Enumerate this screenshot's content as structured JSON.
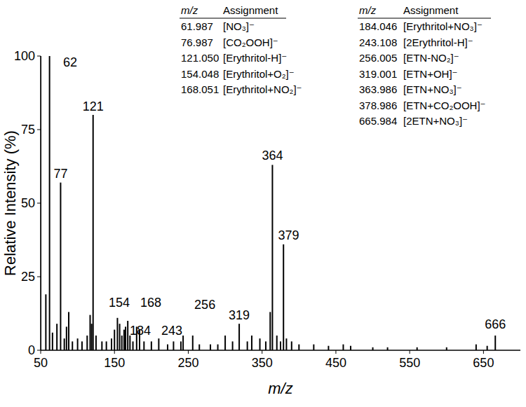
{
  "chart_data": {
    "type": "bar",
    "color": "#000000",
    "x_label": "m/z",
    "y_label": "Relative Intensity (%)",
    "x": [
      50,
      57,
      62,
      66,
      72,
      77,
      82,
      85,
      88,
      93,
      100,
      106,
      113,
      117,
      119,
      121,
      125,
      133,
      139,
      146,
      150,
      154,
      157,
      160,
      163,
      165,
      168,
      171,
      175,
      180,
      184,
      190,
      200,
      210,
      222,
      230,
      240,
      243,
      256,
      265,
      280,
      290,
      300,
      310,
      319,
      330,
      336,
      347,
      355,
      361,
      364,
      370,
      375,
      379,
      383,
      390,
      400,
      420,
      440,
      460,
      470,
      500,
      520,
      560,
      600,
      640,
      655,
      666
    ],
    "values": [
      100,
      19,
      100,
      6,
      9,
      57,
      4,
      8,
      13,
      3,
      4,
      3,
      5,
      12,
      9,
      80,
      5,
      3,
      3,
      4,
      7,
      11,
      9,
      5,
      7,
      8,
      10,
      5,
      3,
      8,
      7,
      3,
      3,
      4,
      2,
      3,
      3,
      5,
      5,
      2,
      2,
      2,
      5,
      3,
      9,
      3,
      5,
      4,
      3,
      13,
      63,
      5,
      3,
      36,
      4,
      3,
      2,
      2,
      1.5,
      2,
      1.5,
      1,
      1,
      1,
      1,
      2,
      1.5,
      5
    ],
    "xlim": [
      50,
      700
    ],
    "xticks": [
      50,
      150,
      250,
      350,
      450,
      550,
      650
    ],
    "ylim": [
      0,
      100
    ],
    "yticks": [
      0,
      25,
      50,
      75,
      100
    ],
    "annotations": [
      {
        "text": "62",
        "x": 90,
        "y": 96.4
      },
      {
        "text": "121",
        "x": 121,
        "y": 81.4
      },
      {
        "text": "77",
        "x": 77,
        "y": 58.6
      },
      {
        "text": "154",
        "x": 156.5,
        "y": 14.8
      },
      {
        "text": "168",
        "x": 199.3,
        "y": 14.8
      },
      {
        "text": "184",
        "x": 185,
        "y": 5.2
      },
      {
        "text": "243",
        "x": 227.8,
        "y": 5.2
      },
      {
        "text": "256",
        "x": 272.5,
        "y": 14
      },
      {
        "text": "319",
        "x": 319,
        "y": 10.5
      },
      {
        "text": "364",
        "x": 364,
        "y": 64.8
      },
      {
        "text": "379",
        "x": 386,
        "y": 37.6
      },
      {
        "text": "666",
        "x": 666,
        "y": 7.5
      }
    ],
    "tables": [
      {
        "columns": [
          "m/z",
          "Assignment"
        ],
        "rows": [
          [
            "61.987",
            "[NO₃]⁻"
          ],
          [
            "76.987",
            "[CO₂OOH]⁻"
          ],
          [
            "121.050",
            "[Erythritol-H]⁻"
          ],
          [
            "154.048",
            "[Erythritol+O₂]⁻"
          ],
          [
            "168.051",
            "[Erythritol+NO₂]⁻"
          ]
        ]
      },
      {
        "columns": [
          "m/z",
          "Assignment"
        ],
        "rows": [
          [
            "184.046",
            "[Erythritol+NO₃]⁻"
          ],
          [
            "243.108",
            "[2Erythritol-H]⁻"
          ],
          [
            "256.005",
            "[ETN-NO₂]⁻"
          ],
          [
            "319.001",
            "[ETN+OH]⁻"
          ],
          [
            "363.986",
            "[ETN+NO₃]⁻"
          ],
          [
            "378.986",
            "[ETN+CO₂OOH]⁻"
          ],
          [
            "665.984",
            "[2ETN+NO₃]⁻"
          ]
        ]
      }
    ]
  }
}
